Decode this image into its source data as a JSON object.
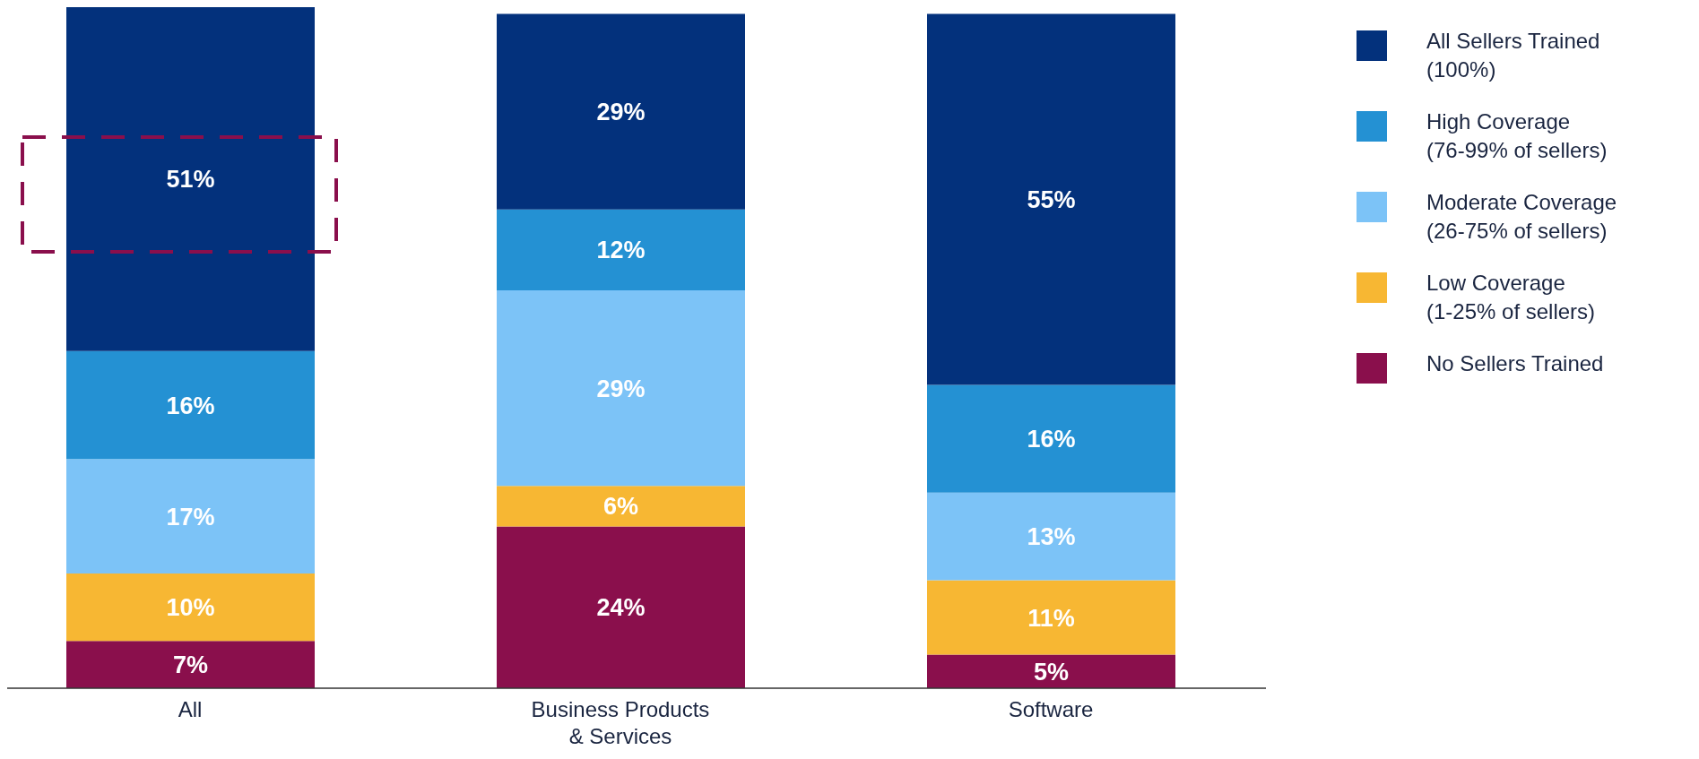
{
  "chart_data": {
    "type": "bar",
    "stacked": true,
    "categories": [
      "All",
      "Business Products & Services",
      "Software"
    ],
    "series": [
      {
        "name": "No Sellers Trained",
        "color": "#8a0f4c",
        "values": [
          7,
          24,
          5
        ],
        "value_labels": [
          "7%",
          "24%",
          "5%"
        ]
      },
      {
        "name": "Low Coverage (1-25% of sellers)",
        "color": "#f7b733",
        "values": [
          10,
          6,
          11
        ],
        "value_labels": [
          "10%",
          "6%",
          "11%"
        ]
      },
      {
        "name": "Moderate Coverage (26-75% of sellers)",
        "color": "#7cc3f7",
        "values": [
          17,
          29,
          13
        ],
        "value_labels": [
          "17%",
          "29%",
          "13%"
        ]
      },
      {
        "name": "High Coverage (76-99% of sellers)",
        "color": "#2491d3",
        "values": [
          16,
          12,
          16
        ],
        "value_labels": [
          "16%",
          "12%",
          "16%"
        ]
      },
      {
        "name": "All Sellers Trained (100%)",
        "color": "#03317c",
        "values": [
          51,
          29,
          55
        ],
        "value_labels": [
          "51%",
          "29%",
          "55%"
        ]
      }
    ],
    "legend": "top right",
    "grid": false,
    "tick_labels": "x"
  }
}
